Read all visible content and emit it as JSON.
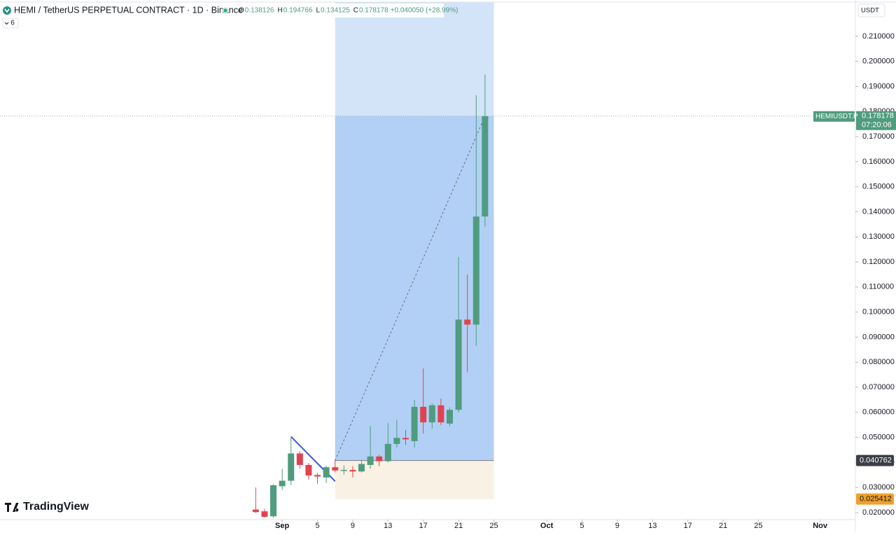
{
  "chart_data": {
    "type": "candlestick",
    "title": "HEMI / TetherUS PERPETUAL CONTRACT · 1D · Binance",
    "indicator_count": "6",
    "currency": "USDT",
    "ohlc_header": [
      {
        "label": "O",
        "value": 0.138126
      },
      {
        "label": "H",
        "value": 0.194766
      },
      {
        "label": "L",
        "value": 0.134125
      },
      {
        "label": "C",
        "value": 0.178178
      }
    ],
    "change": "+0.040050 (+28.99%)",
    "up_color": "#4f9c7f",
    "down_color": "#e0434f",
    "candles": {
      "x": [
        -3,
        -2,
        -1,
        0,
        1,
        2,
        3,
        4,
        5,
        6,
        7,
        8,
        9,
        10,
        11,
        12,
        13,
        14,
        15,
        16,
        17,
        18,
        19,
        20,
        21,
        22,
        23
      ],
      "open": [
        0.0212,
        0.0205,
        0.0185,
        0.0305,
        0.0327,
        0.0436,
        0.039,
        0.035,
        0.034,
        0.0381,
        0.0366,
        0.037,
        0.0364,
        0.039,
        0.0424,
        0.0405,
        0.0474,
        0.0498,
        0.0485,
        0.0622,
        0.056,
        0.0628,
        0.0555,
        0.061,
        0.097,
        0.095,
        0.138126
      ],
      "high": [
        0.03,
        0.0215,
        0.0313,
        0.0375,
        0.0503,
        0.0445,
        0.0398,
        0.0358,
        0.0387,
        0.0408,
        0.0388,
        0.0385,
        0.041,
        0.0545,
        0.043,
        0.0558,
        0.057,
        0.053,
        0.065,
        0.0775,
        0.0635,
        0.0655,
        0.062,
        0.122,
        0.115,
        0.1865,
        0.194766
      ],
      "low": [
        0.0198,
        0.018,
        0.018,
        0.029,
        0.031,
        0.0375,
        0.0332,
        0.0315,
        0.0318,
        0.036,
        0.0352,
        0.034,
        0.036,
        0.0375,
        0.0385,
        0.04,
        0.046,
        0.047,
        0.046,
        0.0515,
        0.0535,
        0.055,
        0.0545,
        0.06,
        0.076,
        0.0865,
        0.134125
      ],
      "close": [
        0.0202,
        0.0183,
        0.0309,
        0.0327,
        0.0436,
        0.039,
        0.0348,
        0.0344,
        0.0381,
        0.0368,
        0.037,
        0.0364,
        0.0394,
        0.0424,
        0.0405,
        0.0474,
        0.0498,
        0.0492,
        0.0622,
        0.056,
        0.0628,
        0.056,
        0.061,
        0.097,
        0.095,
        0.1381,
        0.178178
      ]
    },
    "last_price": {
      "symbol": "HEMIUSDT.P",
      "value": 0.178178,
      "countdown": "07:20:06"
    },
    "position_tool": {
      "x": [
        6,
        24
      ],
      "entry": 0.040762,
      "stop": 0.025412,
      "target": 0.2237
    },
    "trend_line": {
      "x": [
        1,
        6
      ],
      "y": [
        0.0503,
        0.0325
      ]
    },
    "xlim": [
      -32,
      65
    ],
    "ylim": [
      0.0172,
      0.2245
    ],
    "xticks": [
      {
        "value": 0,
        "label": "Sep"
      },
      {
        "value": 4,
        "label": "5"
      },
      {
        "value": 8,
        "label": "9"
      },
      {
        "value": 12,
        "label": "13"
      },
      {
        "value": 16,
        "label": "17"
      },
      {
        "value": 20,
        "label": "21"
      },
      {
        "value": 24,
        "label": "25"
      },
      {
        "value": 30,
        "label": "Oct"
      },
      {
        "value": 34,
        "label": "5"
      },
      {
        "value": 38,
        "label": "9"
      },
      {
        "value": 42,
        "label": "13"
      },
      {
        "value": 46,
        "label": "17"
      },
      {
        "value": 50,
        "label": "21"
      },
      {
        "value": 54,
        "label": "25"
      },
      {
        "value": 61,
        "label": "Nov"
      }
    ],
    "yticks": [
      {
        "value": 0.02,
        "label": "0.020000"
      },
      {
        "value": 0.03,
        "label": "0.030000"
      },
      {
        "value": 0.04,
        "label": "0.040000"
      },
      {
        "value": 0.05,
        "label": "0.050000"
      },
      {
        "value": 0.06,
        "label": "0.060000"
      },
      {
        "value": 0.07,
        "label": "0.070000"
      },
      {
        "value": 0.08,
        "label": "0.080000"
      },
      {
        "value": 0.09,
        "label": "0.090000"
      },
      {
        "value": 0.1,
        "label": "0.100000"
      },
      {
        "value": 0.11,
        "label": "0.110000"
      },
      {
        "value": 0.12,
        "label": "0.120000"
      },
      {
        "value": 0.13,
        "label": "0.130000"
      },
      {
        "value": 0.14,
        "label": "0.140000"
      },
      {
        "value": 0.15,
        "label": "0.150000"
      },
      {
        "value": 0.16,
        "label": "0.160000"
      },
      {
        "value": 0.17,
        "label": "0.170000"
      },
      {
        "value": 0.18,
        "label": "0.180000"
      },
      {
        "value": 0.19,
        "label": "0.190000"
      },
      {
        "value": 0.2,
        "label": "0.200000"
      },
      {
        "value": 0.21,
        "label": "0.210000"
      }
    ],
    "watermark": "TradingView"
  }
}
